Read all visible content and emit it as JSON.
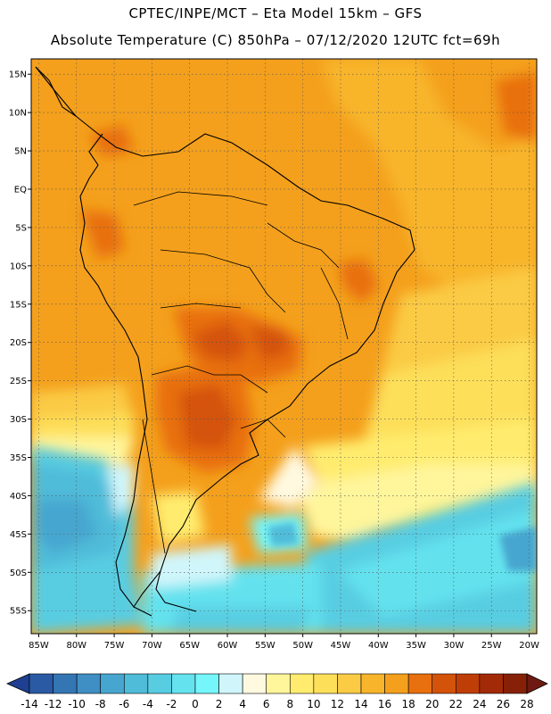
{
  "header": {
    "title_line1": "CPTEC/INPE/MCT –  Eta Model 15km – GFS",
    "title_line2": "Absolute Temperature (C) 850hPa – 07/12/2020 12UTC fct=69h"
  },
  "map": {
    "lon_range": [
      -86,
      -19
    ],
    "lat_range": [
      -58,
      17
    ],
    "lat_ticks": [
      {
        "value": 15,
        "label": "15N"
      },
      {
        "value": 10,
        "label": "10N"
      },
      {
        "value": 5,
        "label": "5N"
      },
      {
        "value": 0,
        "label": "EQ"
      },
      {
        "value": -5,
        "label": "5S"
      },
      {
        "value": -10,
        "label": "10S"
      },
      {
        "value": -15,
        "label": "15S"
      },
      {
        "value": -20,
        "label": "20S"
      },
      {
        "value": -25,
        "label": "25S"
      },
      {
        "value": -30,
        "label": "30S"
      },
      {
        "value": -35,
        "label": "35S"
      },
      {
        "value": -40,
        "label": "40S"
      },
      {
        "value": -45,
        "label": "45S"
      },
      {
        "value": -50,
        "label": "50S"
      },
      {
        "value": -55,
        "label": "55S"
      }
    ],
    "lon_ticks": [
      {
        "value": -85,
        "label": "85W"
      },
      {
        "value": -80,
        "label": "80W"
      },
      {
        "value": -75,
        "label": "75W"
      },
      {
        "value": -70,
        "label": "70W"
      },
      {
        "value": -65,
        "label": "65W"
      },
      {
        "value": -60,
        "label": "60W"
      },
      {
        "value": -55,
        "label": "55W"
      },
      {
        "value": -50,
        "label": "50W"
      },
      {
        "value": -45,
        "label": "45W"
      },
      {
        "value": -40,
        "label": "40W"
      },
      {
        "value": -35,
        "label": "35W"
      },
      {
        "value": -30,
        "label": "30W"
      },
      {
        "value": -25,
        "label": "25W"
      },
      {
        "value": -20,
        "label": "20W"
      }
    ],
    "grid": "dotted every 5 degrees"
  },
  "colorbar": {
    "colors": [
      "#1f3f92",
      "#2a5aa3",
      "#3475b4",
      "#3f8fc4",
      "#47a6cf",
      "#4fbcd9",
      "#58cde2",
      "#64e2ee",
      "#74f6fa",
      "#d0f6fb",
      "#fff9e0",
      "#fff59b",
      "#ffec6e",
      "#fddf5a",
      "#fbcb45",
      "#f8b52c",
      "#f4a01c",
      "#e8700f",
      "#d4530a",
      "#bf3e07",
      "#a32a06",
      "#862108",
      "#6e1a12"
    ],
    "labels": [
      "-14",
      "-12",
      "-10",
      "-8",
      "-6",
      "-4",
      "-2",
      "0",
      "2",
      "4",
      "6",
      "8",
      "10",
      "12",
      "14",
      "16",
      "18",
      "20",
      "22",
      "24",
      "26",
      "28"
    ]
  }
}
